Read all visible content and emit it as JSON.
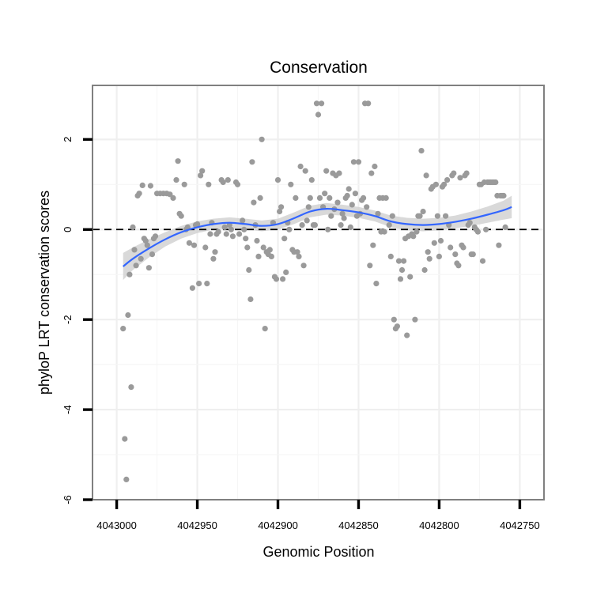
{
  "chart_data": {
    "type": "scatter",
    "title": "Conservation",
    "xlabel": "Genomic Position",
    "ylabel": "phyloP LRT conservation scores",
    "x_reversed": true,
    "xlim": [
      4043015,
      4042735
    ],
    "ylim": [
      -6,
      3.2
    ],
    "x_ticks": [
      4043000,
      4042950,
      4042900,
      4042850,
      4042800,
      4042750
    ],
    "x_tick_labels": [
      "4043000",
      "4042950",
      "4042900",
      "4042850",
      "4042800",
      "4042750"
    ],
    "y_ticks": [
      -6,
      -4,
      -2,
      0,
      2
    ],
    "y_tick_labels": [
      "-6",
      "-4",
      "-2",
      "0",
      "2"
    ],
    "reference_line": 0,
    "grid": true,
    "colors": {
      "points": "#9a9a9a",
      "smooth": "#3366ff",
      "ribbon": "#cfcfcf",
      "reference_line": "#000000"
    },
    "points": [
      [
        4042996,
        -2.2
      ],
      [
        4042995,
        -4.65
      ],
      [
        4042994,
        -5.55
      ],
      [
        4042993,
        -1.9
      ],
      [
        4042992,
        -1.0
      ],
      [
        4042991,
        -3.5
      ],
      [
        4042990,
        0.05
      ],
      [
        4042989,
        -0.45
      ],
      [
        4042988,
        -0.8
      ],
      [
        4042987,
        0.75
      ],
      [
        4042986,
        0.8
      ],
      [
        4042985,
        -0.65
      ],
      [
        4042984,
        0.98
      ],
      [
        4042983,
        -0.2
      ],
      [
        4042982,
        -0.25
      ],
      [
        4042981,
        -0.35
      ],
      [
        4042980,
        -0.85
      ],
      [
        4042979,
        0.97
      ],
      [
        4042978,
        -0.55
      ],
      [
        4042977,
        -0.2
      ],
      [
        4042976,
        -0.15
      ],
      [
        4042975,
        0.8
      ],
      [
        4042973,
        0.8
      ],
      [
        4042971,
        0.8
      ],
      [
        4042969,
        0.8
      ],
      [
        4042967,
        0.78
      ],
      [
        4042965,
        0.7
      ],
      [
        4042963,
        1.1
      ],
      [
        4042962,
        1.52
      ],
      [
        4042961,
        0.35
      ],
      [
        4042960,
        0.3
      ],
      [
        4042958,
        1.0
      ],
      [
        4042957,
        0.0
      ],
      [
        4042956,
        0.05
      ],
      [
        4042955,
        -0.3
      ],
      [
        4042953,
        -1.3
      ],
      [
        4042952,
        -0.35
      ],
      [
        4042951,
        0.1
      ],
      [
        4042950,
        0.12
      ],
      [
        4042949,
        -1.2
      ],
      [
        4042948,
        1.2
      ],
      [
        4042947,
        1.3
      ],
      [
        4042945,
        -0.4
      ],
      [
        4042944,
        -1.2
      ],
      [
        4042943,
        1.0
      ],
      [
        4042942,
        -0.1
      ],
      [
        4042941,
        0.15
      ],
      [
        4042940,
        -0.65
      ],
      [
        4042939,
        -0.5
      ],
      [
        4042938,
        -0.1
      ],
      [
        4042937,
        -0.05
      ],
      [
        4042935,
        1.1
      ],
      [
        4042934,
        1.05
      ],
      [
        4042933,
        0.05
      ],
      [
        4042932,
        -0.1
      ],
      [
        4042931,
        1.1
      ],
      [
        4042930,
        0.1
      ],
      [
        4042929,
        0.0
      ],
      [
        4042928,
        -0.15
      ],
      [
        4042926,
        1.05
      ],
      [
        4042925,
        1.0
      ],
      [
        4042924,
        -0.1
      ],
      [
        4042922,
        0.2
      ],
      [
        4042921,
        0.0
      ],
      [
        4042920,
        -0.2
      ],
      [
        4042919,
        -0.4
      ],
      [
        4042918,
        -0.9
      ],
      [
        4042917,
        -1.55
      ],
      [
        4042916,
        1.5
      ],
      [
        4042915,
        0.6
      ],
      [
        4042914,
        0.1
      ],
      [
        4042913,
        -0.25
      ],
      [
        4042912,
        -0.6
      ],
      [
        4042911,
        0.7
      ],
      [
        4042910,
        2.0
      ],
      [
        4042909,
        -0.4
      ],
      [
        4042908,
        -2.2
      ],
      [
        4042907,
        -0.5
      ],
      [
        4042906,
        -0.55
      ],
      [
        4042905,
        -0.45
      ],
      [
        4042904,
        -0.6
      ],
      [
        4042903,
        0.15
      ],
      [
        4042902,
        -1.05
      ],
      [
        4042901,
        -1.1
      ],
      [
        4042900,
        1.1
      ],
      [
        4042899,
        0.4
      ],
      [
        4042898,
        0.5
      ],
      [
        4042897,
        -1.1
      ],
      [
        4042896,
        -0.2
      ],
      [
        4042895,
        -0.95
      ],
      [
        4042894,
        0.15
      ],
      [
        4042893,
        0.0
      ],
      [
        4042892,
        1.0
      ],
      [
        4042891,
        -0.45
      ],
      [
        4042890,
        -0.5
      ],
      [
        4042889,
        0.7
      ],
      [
        4042888,
        -0.5
      ],
      [
        4042887,
        -0.6
      ],
      [
        4042886,
        1.4
      ],
      [
        4042885,
        0.1
      ],
      [
        4042884,
        -0.8
      ],
      [
        4042883,
        1.3
      ],
      [
        4042882,
        0.2
      ],
      [
        4042881,
        0.5
      ],
      [
        4042880,
        0.7
      ],
      [
        4042879,
        1.1
      ],
      [
        4042878,
        0.1
      ],
      [
        4042877,
        0.1
      ],
      [
        4042876,
        2.8
      ],
      [
        4042875,
        2.55
      ],
      [
        4042874,
        0.7
      ],
      [
        4042873,
        2.8
      ],
      [
        4042872,
        0.5
      ],
      [
        4042871,
        0.8
      ],
      [
        4042870,
        1.3
      ],
      [
        4042869,
        0.0
      ],
      [
        4042868,
        0.7
      ],
      [
        4042867,
        0.3
      ],
      [
        4042866,
        1.25
      ],
      [
        4042865,
        0.45
      ],
      [
        4042864,
        1.2
      ],
      [
        4042863,
        0.6
      ],
      [
        4042862,
        1.25
      ],
      [
        4042861,
        0.1
      ],
      [
        4042860,
        0.35
      ],
      [
        4042859,
        0.25
      ],
      [
        4042858,
        0.7
      ],
      [
        4042857,
        0.75
      ],
      [
        4042856,
        0.9
      ],
      [
        4042855,
        0.05
      ],
      [
        4042854,
        0.55
      ],
      [
        4042853,
        1.5
      ],
      [
        4042852,
        0.8
      ],
      [
        4042851,
        0.3
      ],
      [
        4042850,
        1.5
      ],
      [
        4042849,
        0.35
      ],
      [
        4042848,
        0.65
      ],
      [
        4042847,
        0.7
      ],
      [
        4042846,
        2.8
      ],
      [
        4042845,
        0.5
      ],
      [
        4042844,
        2.8
      ],
      [
        4042843,
        -0.8
      ],
      [
        4042842,
        1.25
      ],
      [
        4042841,
        -0.35
      ],
      [
        4042840,
        1.4
      ],
      [
        4042839,
        -1.2
      ],
      [
        4042838,
        0.35
      ],
      [
        4042837,
        0.7
      ],
      [
        4042836,
        -0.05
      ],
      [
        4042835,
        0.7
      ],
      [
        4042834,
        -0.05
      ],
      [
        4042833,
        0.7
      ],
      [
        4042831,
        0.1
      ],
      [
        4042830,
        -0.6
      ],
      [
        4042829,
        0.3
      ],
      [
        4042828,
        -2.0
      ],
      [
        4042827,
        -2.2
      ],
      [
        4042826,
        -2.15
      ],
      [
        4042825,
        -0.7
      ],
      [
        4042824,
        -1.1
      ],
      [
        4042823,
        -0.9
      ],
      [
        4042822,
        -0.7
      ],
      [
        4042821,
        -0.2
      ],
      [
        4042820,
        -2.35
      ],
      [
        4042819,
        -0.15
      ],
      [
        4042818,
        -1.05
      ],
      [
        4042817,
        -0.1
      ],
      [
        4042816,
        -0.15
      ],
      [
        4042815,
        -2.0
      ],
      [
        4042814,
        -0.05
      ],
      [
        4042813,
        0.3
      ],
      [
        4042812,
        0.3
      ],
      [
        4042811,
        1.75
      ],
      [
        4042810,
        0.4
      ],
      [
        4042809,
        -0.9
      ],
      [
        4042808,
        1.2
      ],
      [
        4042807,
        -0.5
      ],
      [
        4042806,
        -0.65
      ],
      [
        4042805,
        0.9
      ],
      [
        4042804,
        0.95
      ],
      [
        4042803,
        -0.3
      ],
      [
        4042802,
        1.0
      ],
      [
        4042801,
        0.3
      ],
      [
        4042800,
        -0.6
      ],
      [
        4042799,
        -0.25
      ],
      [
        4042798,
        0.95
      ],
      [
        4042797,
        1.0
      ],
      [
        4042796,
        0.3
      ],
      [
        4042795,
        1.1
      ],
      [
        4042794,
        0.1
      ],
      [
        4042793,
        -0.4
      ],
      [
        4042792,
        1.2
      ],
      [
        4042791,
        1.25
      ],
      [
        4042790,
        -0.55
      ],
      [
        4042789,
        -0.75
      ],
      [
        4042788,
        -0.8
      ],
      [
        4042787,
        1.15
      ],
      [
        4042786,
        -0.35
      ],
      [
        4042785,
        -0.4
      ],
      [
        4042784,
        1.2
      ],
      [
        4042783,
        1.25
      ],
      [
        4042782,
        0.1
      ],
      [
        4042781,
        0.15
      ],
      [
        4042780,
        -0.55
      ],
      [
        4042779,
        -0.55
      ],
      [
        4042778,
        0.05
      ],
      [
        4042777,
        0.0
      ],
      [
        4042776,
        -0.05
      ],
      [
        4042775,
        1.0
      ],
      [
        4042774,
        1.0
      ],
      [
        4042773,
        -0.7
      ],
      [
        4042772,
        1.05
      ],
      [
        4042771,
        0.0
      ],
      [
        4042770,
        1.05
      ],
      [
        4042769,
        1.05
      ],
      [
        4042768,
        1.05
      ],
      [
        4042767,
        1.05
      ],
      [
        4042766,
        1.05
      ],
      [
        4042765,
        1.05
      ],
      [
        4042764,
        0.75
      ],
      [
        4042763,
        -0.35
      ],
      [
        4042762,
        0.75
      ],
      [
        4042761,
        0.75
      ],
      [
        4042760,
        0.75
      ],
      [
        4042759,
        0.05
      ]
    ],
    "smooth": {
      "method": "loess",
      "x": [
        4042996,
        4042990,
        4042980,
        4042970,
        4042960,
        4042950,
        4042940,
        4042930,
        4042920,
        4042910,
        4042900,
        4042890,
        4042880,
        4042870,
        4042860,
        4042850,
        4042840,
        4042830,
        4042820,
        4042810,
        4042800,
        4042790,
        4042780,
        4042770,
        4042760,
        4042755
      ],
      "y": [
        -0.82,
        -0.65,
        -0.42,
        -0.22,
        -0.06,
        0.05,
        0.12,
        0.15,
        0.12,
        0.08,
        0.12,
        0.25,
        0.4,
        0.46,
        0.43,
        0.38,
        0.3,
        0.18,
        0.12,
        0.1,
        0.12,
        0.17,
        0.24,
        0.33,
        0.43,
        0.5
      ],
      "lower": [
        -1.12,
        -0.9,
        -0.62,
        -0.38,
        -0.2,
        -0.08,
        0.0,
        0.03,
        0.0,
        -0.04,
        0.0,
        0.12,
        0.27,
        0.33,
        0.31,
        0.26,
        0.18,
        0.05,
        -0.02,
        -0.04,
        -0.02,
        0.03,
        0.08,
        0.15,
        0.22,
        0.25
      ],
      "upper": [
        -0.52,
        -0.4,
        -0.22,
        -0.06,
        0.08,
        0.18,
        0.24,
        0.27,
        0.24,
        0.2,
        0.24,
        0.38,
        0.53,
        0.59,
        0.55,
        0.5,
        0.42,
        0.31,
        0.26,
        0.24,
        0.26,
        0.31,
        0.4,
        0.51,
        0.64,
        0.75
      ]
    }
  }
}
